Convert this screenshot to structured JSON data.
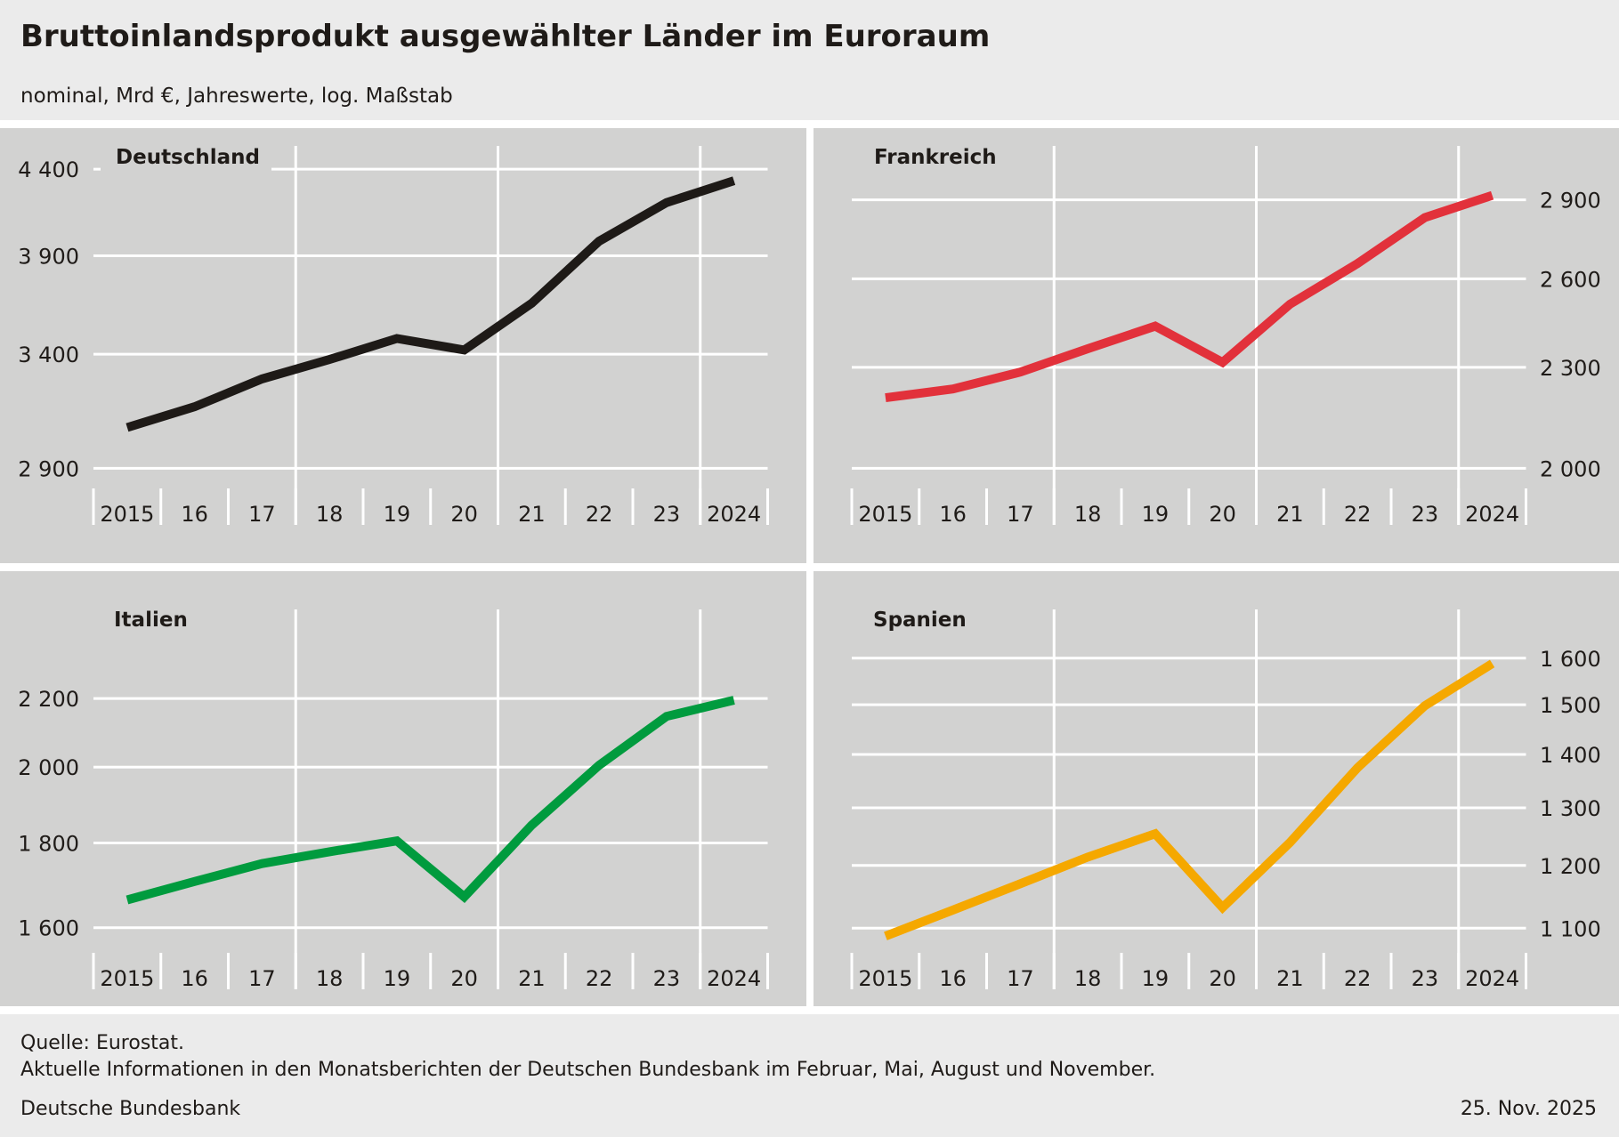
{
  "header": {
    "title": "Bruttoinlandsprodukt ausgewählter Länder im Euroraum",
    "subtitle": "nominal, Mrd €, Jahreswerte, log. Maßstab"
  },
  "footer": {
    "source": "Quelle: Eurostat.",
    "note": "Aktuelle Informationen in den Monatsberichten der Deutschen Bundesbank im Februar, Mai, August und November.",
    "publisher": "Deutsche Bundesbank",
    "date": "25. Nov. 2025"
  },
  "chart_data": [
    {
      "type": "line",
      "title": "Deutschland",
      "xlabel": "",
      "ylabel": "Mrd €",
      "scale": "log",
      "color": "#1e1a17",
      "axis_side": "left",
      "categories": [
        "2015",
        "16",
        "17",
        "18",
        "19",
        "20",
        "21",
        "22",
        "23",
        "2024"
      ],
      "x": [
        2015,
        2016,
        2017,
        2018,
        2019,
        2020,
        2021,
        2022,
        2023,
        2024
      ],
      "values": [
        3070,
        3160,
        3285,
        3375,
        3475,
        3420,
        3650,
        3980,
        4200,
        4330
      ],
      "yticks": [
        2900,
        3400,
        3900,
        4400
      ],
      "ytick_labels": [
        "2 900",
        "3 400",
        "3 900",
        "4 400"
      ],
      "ylim": [
        2820,
        4545
      ],
      "grid": true
    },
    {
      "type": "line",
      "title": "Frankreich",
      "xlabel": "",
      "ylabel": "Mrd €",
      "scale": "log",
      "color": "#e2313b",
      "axis_side": "right",
      "categories": [
        "2015",
        "16",
        "17",
        "18",
        "19",
        "20",
        "21",
        "22",
        "23",
        "2024"
      ],
      "x": [
        2015,
        2016,
        2017,
        2018,
        2019,
        2020,
        2021,
        2022,
        2023,
        2024
      ],
      "values": [
        2205,
        2232,
        2285,
        2360,
        2435,
        2316,
        2510,
        2655,
        2830,
        2918
      ],
      "yticks": [
        2000,
        2300,
        2600,
        2900
      ],
      "ytick_labels": [
        "2 000",
        "2 300",
        "2 600",
        "2 900"
      ],
      "ylim": [
        1945,
        3125
      ],
      "grid": true
    },
    {
      "type": "line",
      "title": "Italien",
      "xlabel": "",
      "ylabel": "Mrd €",
      "scale": "log",
      "color": "#009b3e",
      "axis_side": "left",
      "categories": [
        "2015",
        "16",
        "17",
        "18",
        "19",
        "20",
        "21",
        "22",
        "23",
        "2024"
      ],
      "x": [
        2015,
        2016,
        2017,
        2018,
        2019,
        2020,
        2021,
        2022,
        2023,
        2024
      ],
      "values": [
        1663,
        1706,
        1749,
        1778,
        1805,
        1670,
        1845,
        2005,
        2146,
        2195
      ],
      "yticks": [
        1600,
        1800,
        2000,
        2200
      ],
      "ytick_labels": [
        "1 600",
        "1 800",
        "2 000",
        "2 200"
      ],
      "ylim": [
        1545,
        2490
      ],
      "grid": true
    },
    {
      "type": "line",
      "title": "Spanien",
      "xlabel": "",
      "ylabel": "Mrd €",
      "scale": "log",
      "color": "#f5a800",
      "axis_side": "right",
      "categories": [
        "2015",
        "16",
        "17",
        "18",
        "19",
        "20",
        "21",
        "22",
        "23",
        "2024"
      ],
      "x": [
        2015,
        2016,
        2017,
        2018,
        2019,
        2020,
        2021,
        2022,
        2023,
        2024
      ],
      "values": [
        1088,
        1128,
        1170,
        1214,
        1254,
        1132,
        1239,
        1374,
        1498,
        1588
      ],
      "yticks": [
        1100,
        1200,
        1300,
        1400,
        1500,
        1600
      ],
      "ytick_labels": [
        "1 100",
        "1 200",
        "1 300",
        "1 400",
        "1 500",
        "1 600"
      ],
      "ylim": [
        1063,
        1712
      ],
      "grid": true
    }
  ]
}
